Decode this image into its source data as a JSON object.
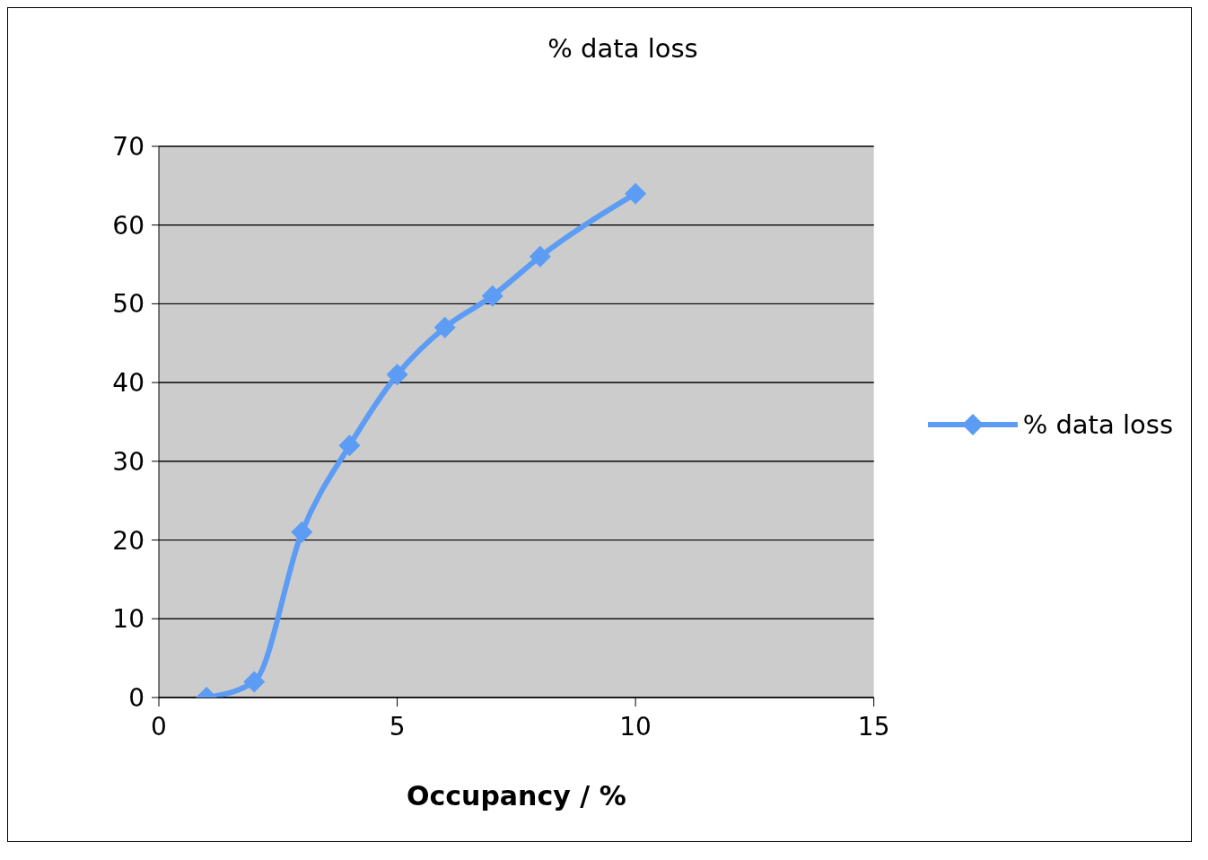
{
  "chart_data": {
    "type": "line",
    "title": "% data loss",
    "xlabel": "Occupancy / %",
    "x": [
      1,
      2,
      3,
      4,
      5,
      6,
      7,
      8,
      10
    ],
    "series": [
      {
        "name": "% data loss",
        "color": "#5c9cf5",
        "values": [
          0,
          2,
          21,
          32,
          41,
          47,
          51,
          56,
          64
        ]
      }
    ],
    "xlim": [
      0,
      15
    ],
    "xticks": [
      0,
      5,
      10,
      15
    ],
    "ylim": [
      0,
      70
    ],
    "yticks": [
      0,
      10,
      20,
      30,
      40,
      50,
      60,
      70
    ],
    "grid": "y",
    "legend": "right",
    "marker": "diamond",
    "line_style": "solid"
  }
}
